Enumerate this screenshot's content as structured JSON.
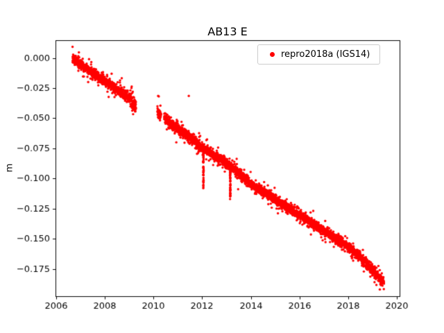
{
  "chart_data": {
    "type": "scatter",
    "title": "AB13 E",
    "xlabel": "",
    "ylabel": "m",
    "grid": false,
    "legend_position": "upper right",
    "xlim": [
      2005.98,
      2020.1
    ],
    "ylim": [
      -0.1977,
      0.0147
    ],
    "xticks": {
      "values": [
        2006,
        2008,
        2010,
        2012,
        2014,
        2016,
        2018,
        2020
      ],
      "labels": [
        "2006",
        "2008",
        "2010",
        "2012",
        "2014",
        "2016",
        "2018",
        "2020"
      ]
    },
    "yticks": {
      "values": [
        0.0,
        -0.025,
        -0.05,
        -0.075,
        -0.1,
        -0.125,
        -0.15,
        -0.175
      ],
      "labels": [
        "0.000",
        "−0.025",
        "−0.050",
        "−0.075",
        "−0.100",
        "−0.125",
        "−0.150",
        "−0.175"
      ]
    },
    "series": [
      {
        "name": "repro2018a (IGS14)",
        "color": "#ff0000",
        "marker": "dot",
        "x_start": 2006.68,
        "x_end": 2019.46,
        "points_per_year": 365,
        "noise_std": 0.0019,
        "seed": 7,
        "trend_points": [
          [
            2006.68,
            -0.0005
          ],
          [
            2007.0,
            -0.005
          ],
          [
            2007.5,
            -0.012
          ],
          [
            2008.0,
            -0.0195
          ],
          [
            2008.5,
            -0.026
          ],
          [
            2009.0,
            -0.033
          ],
          [
            2009.28,
            -0.04
          ],
          [
            2010.16,
            -0.045
          ],
          [
            2010.5,
            -0.051
          ],
          [
            2011.0,
            -0.059
          ],
          [
            2011.5,
            -0.066
          ],
          [
            2012.0,
            -0.0745
          ],
          [
            2012.5,
            -0.081
          ],
          [
            2013.0,
            -0.0875
          ],
          [
            2013.5,
            -0.096
          ],
          [
            2014.0,
            -0.1045
          ],
          [
            2014.5,
            -0.111
          ],
          [
            2015.0,
            -0.1175
          ],
          [
            2015.5,
            -0.124
          ],
          [
            2016.0,
            -0.1305
          ],
          [
            2016.5,
            -0.137
          ],
          [
            2017.0,
            -0.1435
          ],
          [
            2017.5,
            -0.15
          ],
          [
            2018.0,
            -0.157
          ],
          [
            2018.5,
            -0.1655
          ],
          [
            2019.0,
            -0.176
          ],
          [
            2019.46,
            -0.1865
          ]
        ],
        "gaps": [
          [
            2009.28,
            2010.16
          ],
          [
            2010.31,
            2010.44
          ]
        ],
        "noisy_windows": [
          [
            2009.03,
            2009.29
          ]
        ],
        "excursions": [
          {
            "x": 2012.05,
            "depth": -0.032,
            "count": 45
          },
          {
            "x": 2013.15,
            "depth": -0.026,
            "count": 45
          }
        ],
        "outliers": [
          [
            2011.45,
            -0.0315
          ]
        ]
      }
    ]
  }
}
